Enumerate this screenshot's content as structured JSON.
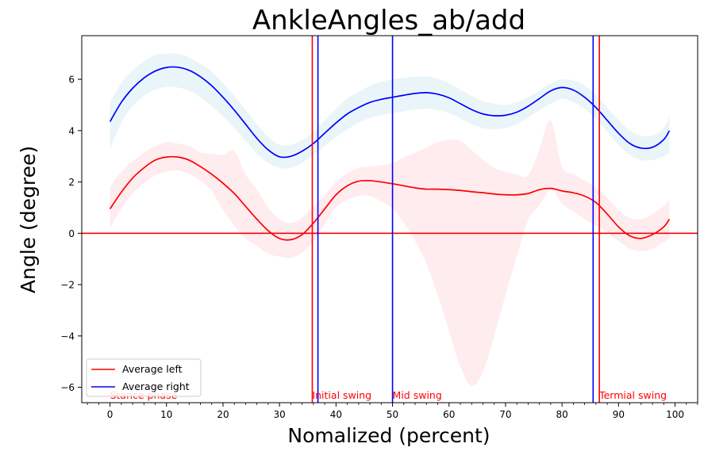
{
  "chart_data": {
    "type": "line",
    "title": "AnkleAngles_ab/add",
    "xlabel": "Nomalized (percent)",
    "ylabel": "Angle (degree)",
    "xlim": [
      -5,
      104
    ],
    "ylim": [
      -6.6,
      7.7
    ],
    "x_ticks": [
      0,
      10,
      20,
      30,
      40,
      50,
      60,
      70,
      80,
      90,
      100
    ],
    "y_ticks": [
      -6,
      -4,
      -2,
      0,
      2,
      4,
      6
    ],
    "y_tick_labels": [
      "−6",
      "−4",
      "−2",
      "0",
      "2",
      "4",
      "6"
    ],
    "minor_x_ticks": true,
    "grid": false,
    "legend_position": "lower-left",
    "x": [
      0,
      2,
      4,
      6,
      8,
      10,
      12,
      14,
      16,
      18,
      20,
      22,
      24,
      26,
      28,
      30,
      32,
      34,
      36,
      38,
      40,
      42,
      44,
      46,
      48,
      50,
      52,
      54,
      56,
      58,
      60,
      62,
      64,
      66,
      68,
      70,
      72,
      74,
      76,
      78,
      80,
      82,
      84,
      86,
      88,
      90,
      92,
      94,
      96,
      98,
      99
    ],
    "series": [
      {
        "name": "Average left",
        "color": "#ff0000",
        "band_color": "#ffc0cb",
        "mean": [
          0.95,
          1.6,
          2.15,
          2.55,
          2.85,
          2.97,
          2.97,
          2.85,
          2.6,
          2.3,
          1.95,
          1.55,
          1.05,
          0.55,
          0.1,
          -0.2,
          -0.25,
          -0.05,
          0.4,
          0.95,
          1.5,
          1.85,
          2.03,
          2.05,
          2.0,
          1.93,
          1.85,
          1.77,
          1.72,
          1.72,
          1.7,
          1.67,
          1.62,
          1.58,
          1.53,
          1.5,
          1.5,
          1.55,
          1.7,
          1.75,
          1.65,
          1.58,
          1.45,
          1.2,
          0.75,
          0.25,
          -0.1,
          -0.2,
          -0.05,
          0.25,
          0.55
        ],
        "upper": [
          1.8,
          2.4,
          2.8,
          3.15,
          3.4,
          3.55,
          3.5,
          3.4,
          3.15,
          3.1,
          3.05,
          3.2,
          2.3,
          1.7,
          1.0,
          0.55,
          0.4,
          0.6,
          1.05,
          1.5,
          2.0,
          2.35,
          2.55,
          2.6,
          2.65,
          2.75,
          2.95,
          3.15,
          3.35,
          3.55,
          3.65,
          3.6,
          3.25,
          2.85,
          2.55,
          2.4,
          2.3,
          2.25,
          3.3,
          4.4,
          2.6,
          2.3,
          2.05,
          1.8,
          1.4,
          0.9,
          0.6,
          0.55,
          0.75,
          1.05,
          1.35
        ],
        "lower": [
          0.2,
          0.95,
          1.55,
          1.95,
          2.25,
          2.4,
          2.45,
          2.3,
          2.05,
          1.65,
          0.9,
          0.3,
          -0.2,
          -0.5,
          -0.8,
          -0.9,
          -0.95,
          -0.75,
          -0.3,
          0.35,
          1.0,
          1.3,
          1.45,
          1.45,
          1.25,
          0.95,
          0.4,
          -0.3,
          -1.2,
          -2.4,
          -3.8,
          -5.2,
          -5.95,
          -5.4,
          -4.0,
          -2.4,
          -0.9,
          0.5,
          1.1,
          1.7,
          1.15,
          0.85,
          0.55,
          0.3,
          0.05,
          -0.3,
          -0.6,
          -0.7,
          -0.6,
          -0.35,
          -0.2
        ]
      },
      {
        "name": "Average right",
        "color": "#0000ff",
        "band_color": "#add8e6",
        "mean": [
          4.35,
          5.1,
          5.65,
          6.05,
          6.32,
          6.46,
          6.47,
          6.35,
          6.1,
          5.75,
          5.3,
          4.8,
          4.25,
          3.7,
          3.25,
          2.98,
          3.0,
          3.2,
          3.5,
          3.9,
          4.3,
          4.65,
          4.9,
          5.1,
          5.22,
          5.3,
          5.38,
          5.45,
          5.48,
          5.42,
          5.28,
          5.05,
          4.82,
          4.65,
          4.58,
          4.6,
          4.72,
          4.95,
          5.25,
          5.55,
          5.68,
          5.58,
          5.3,
          4.9,
          4.4,
          3.9,
          3.5,
          3.32,
          3.35,
          3.65,
          4.0
        ],
        "upper": [
          5.1,
          5.85,
          6.35,
          6.7,
          6.95,
          7.0,
          7.0,
          6.85,
          6.6,
          6.3,
          5.85,
          5.35,
          4.8,
          4.25,
          3.75,
          3.45,
          3.45,
          3.65,
          3.95,
          4.4,
          4.85,
          5.25,
          5.5,
          5.75,
          5.9,
          6.0,
          6.05,
          6.1,
          6.1,
          6.02,
          5.85,
          5.6,
          5.35,
          5.15,
          5.05,
          5.0,
          5.1,
          5.3,
          5.55,
          5.85,
          6.0,
          5.95,
          5.75,
          5.4,
          4.9,
          4.4,
          4.0,
          3.8,
          3.8,
          4.1,
          4.6
        ],
        "lower": [
          3.3,
          4.3,
          4.95,
          5.35,
          5.6,
          5.7,
          5.68,
          5.55,
          5.3,
          4.95,
          4.55,
          4.1,
          3.6,
          3.1,
          2.75,
          2.55,
          2.55,
          2.75,
          3.05,
          3.4,
          3.75,
          4.05,
          4.3,
          4.5,
          4.6,
          4.68,
          4.75,
          4.82,
          4.85,
          4.8,
          4.68,
          4.48,
          4.25,
          4.1,
          4.05,
          4.1,
          4.25,
          4.5,
          4.8,
          5.05,
          5.25,
          5.1,
          4.85,
          4.45,
          3.95,
          3.45,
          3.05,
          2.85,
          2.85,
          3.0,
          3.15
        ]
      }
    ],
    "vlines": [
      {
        "x": 35.8,
        "color": "#ff0000"
      },
      {
        "x": 36.8,
        "color": "#0000ff"
      },
      {
        "x": 50.0,
        "color": "#0000ff"
      },
      {
        "x": 85.5,
        "color": "#0000ff"
      },
      {
        "x": 86.6,
        "color": "#ff0000"
      }
    ],
    "hline": {
      "y": 0,
      "color": "#ff0000"
    },
    "phase_labels": [
      {
        "text": "Stance phase",
        "x": 0.0,
        "color": "#ff0000"
      },
      {
        "text": "Initial swing",
        "x": 35.8,
        "color": "#ff0000"
      },
      {
        "text": "Mid swing",
        "x": 50.0,
        "color": "#ff0000"
      },
      {
        "text": "Termial swing",
        "x": 86.6,
        "color": "#ff0000"
      }
    ]
  }
}
